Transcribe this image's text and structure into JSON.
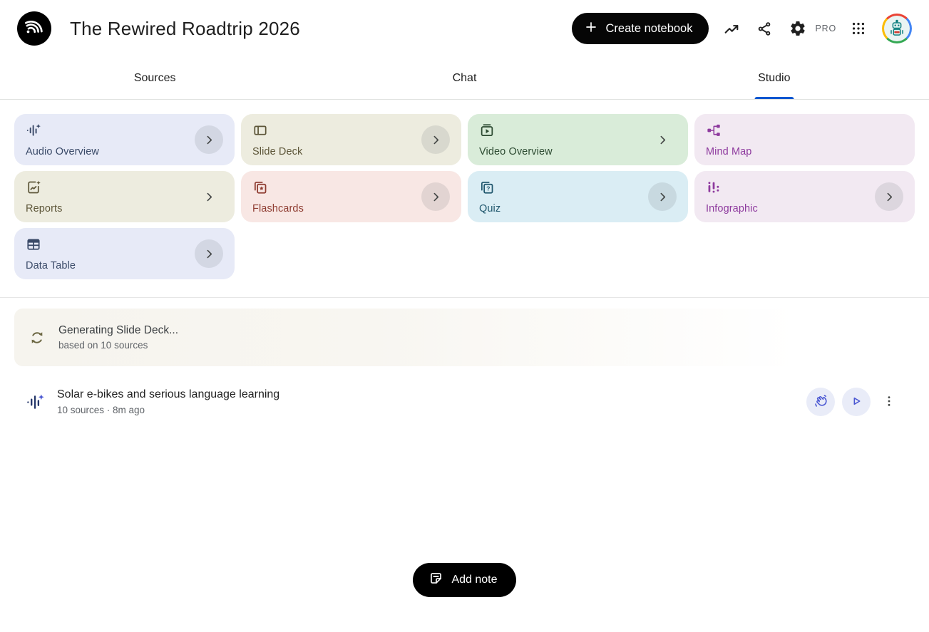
{
  "header": {
    "title": "The Rewired Roadtrip 2026",
    "create_button_label": "Create notebook",
    "pro_badge": "PRO",
    "icons": [
      "notebooklm-logo",
      "plus-icon",
      "trending-up-icon",
      "share-icon",
      "settings-gear-icon",
      "apps-grid-icon",
      "account-avatar"
    ]
  },
  "tabs": [
    {
      "label": "Sources",
      "active": false
    },
    {
      "label": "Chat",
      "active": false
    },
    {
      "label": "Studio",
      "active": true
    }
  ],
  "colors": {
    "tab_underline": "#0b57d0",
    "pill_black": "#000000",
    "round_button_bg": "#e9ecf8",
    "round_button_fg": "#4a57d2"
  },
  "studio_cards": [
    {
      "id": "audio-overview",
      "label": "Audio Overview",
      "icon": "waveform-sparkle-icon",
      "bg": "#e7eaf7",
      "fg": "#3a4a68",
      "chevron": "circle"
    },
    {
      "id": "slide-deck",
      "label": "Slide Deck",
      "icon": "slide-layout-icon",
      "bg": "#edecdf",
      "fg": "#5d5639",
      "chevron": "circle"
    },
    {
      "id": "video-overview",
      "label": "Video Overview",
      "icon": "video-play-icon",
      "bg": "#d9ecd9",
      "fg": "#2c4a31",
      "chevron": "plain"
    },
    {
      "id": "mind-map",
      "label": "Mind Map",
      "icon": "mind-map-icon",
      "bg": "#f2e9f2",
      "fg": "#8e3a9e",
      "chevron": "none"
    },
    {
      "id": "reports",
      "label": "Reports",
      "icon": "report-sparkle-icon",
      "bg": "#edecdf",
      "fg": "#5d5639",
      "chevron": "plain"
    },
    {
      "id": "flashcards",
      "label": "Flashcards",
      "icon": "flashcards-star-icon",
      "bg": "#f8e7e4",
      "fg": "#8e3c31",
      "chevron": "circle"
    },
    {
      "id": "quiz",
      "label": "Quiz",
      "icon": "quiz-cards-icon",
      "bg": "#daedf4",
      "fg": "#20576d",
      "chevron": "circle"
    },
    {
      "id": "infographic",
      "label": "Infographic",
      "icon": "infographic-bars-icon",
      "bg": "#f2e9f2",
      "fg": "#8e3a9e",
      "chevron": "circle"
    },
    {
      "id": "data-table",
      "label": "Data Table",
      "icon": "data-table-icon",
      "bg": "#e7eaf7",
      "fg": "#3a4a68",
      "chevron": "circle"
    }
  ],
  "generating": {
    "icon": "sync-icon",
    "title": "Generating Slide Deck...",
    "subtitle": "based on 10 sources"
  },
  "audio_item": {
    "icon": "waveform-sparkle-icon",
    "title": "Solar e-bikes and serious language learning",
    "meta": "10 sources · 8m ago",
    "actions": [
      "interactive-mode-button",
      "play-button",
      "more-options-button"
    ]
  },
  "add_note_label": "Add note"
}
